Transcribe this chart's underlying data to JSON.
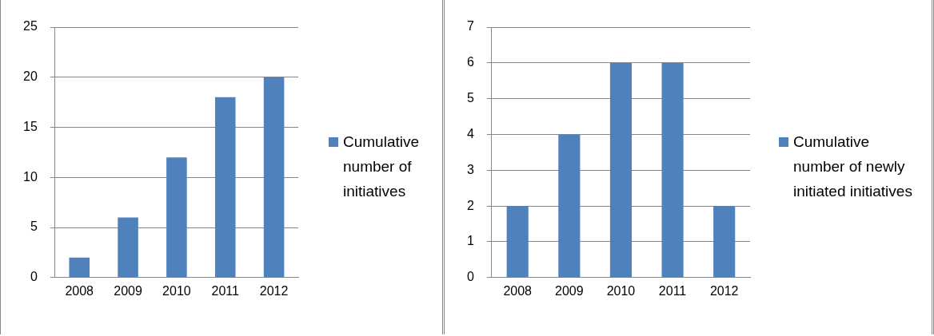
{
  "chart_data": [
    {
      "type": "bar",
      "categories": [
        "2008",
        "2009",
        "2010",
        "2011",
        "2012"
      ],
      "series": [
        {
          "name": "Cumulative number of initiatives",
          "color": "#4f81bd",
          "values": [
            2,
            6,
            12,
            18,
            20
          ]
        }
      ],
      "ylim": [
        0,
        25
      ],
      "yticks": [
        0,
        5,
        10,
        15,
        20,
        25
      ],
      "grid": "y",
      "legend": "right"
    },
    {
      "type": "bar",
      "categories": [
        "2008",
        "2009",
        "2010",
        "2011",
        "2012"
      ],
      "series": [
        {
          "name": "Cumulative number of newly initiated initiatives",
          "color": "#4f81bd",
          "values": [
            2,
            4,
            6,
            6,
            2
          ]
        }
      ],
      "ylim": [
        0,
        7
      ],
      "yticks": [
        0,
        1,
        2,
        3,
        4,
        5,
        6,
        7
      ],
      "grid": "y",
      "legend": "right"
    }
  ]
}
